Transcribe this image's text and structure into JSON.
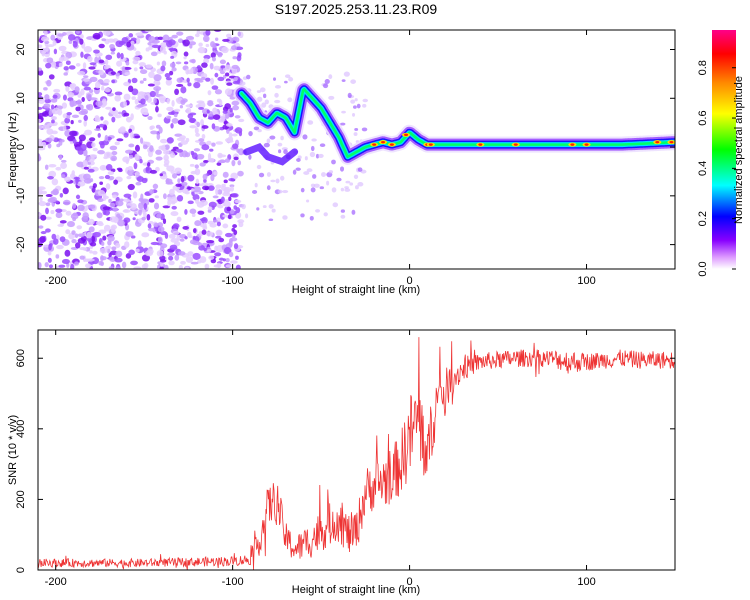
{
  "title": "S197.2025.253.11.23.R09",
  "chart_data": [
    {
      "type": "heatmap",
      "title": "S197.2025.253.11.23.R09",
      "xlabel": "Height of straight line (km)",
      "ylabel": "Frequency (Hz)",
      "xlim": [
        -210,
        150
      ],
      "ylim": [
        -25,
        24
      ],
      "x_ticks": [
        -200,
        -100,
        0,
        100
      ],
      "y_ticks": [
        -20,
        -10,
        0,
        10,
        20
      ],
      "colorbar": {
        "label": "Normalized spectral amplitude",
        "range": [
          0,
          0.95
        ],
        "ticks": [
          0.0,
          0.2,
          0.4,
          0.6,
          0.8
        ],
        "colors": [
          "#ffffff",
          "#cc88ff",
          "#8800ff",
          "#0000ff",
          "#00ffff",
          "#00ff00",
          "#ffff00",
          "#ff6600",
          "#ff0000",
          "#ff00aa"
        ]
      },
      "ridge": {
        "description": "dominant frequency track",
        "x": [
          -95,
          -90,
          -85,
          -80,
          -75,
          -70,
          -65,
          -60,
          -55,
          -50,
          -45,
          -40,
          -35,
          -30,
          -25,
          -20,
          -15,
          -10,
          -5,
          0,
          5,
          10,
          20,
          40,
          60,
          80,
          100,
          120,
          150
        ],
        "y": [
          11,
          9,
          6,
          5,
          7,
          6,
          3,
          12,
          10,
          8,
          5,
          2,
          -2,
          -1,
          0,
          0.5,
          1,
          0.5,
          1,
          3,
          1.5,
          0.5,
          0.5,
          0.5,
          0.5,
          0.5,
          0.5,
          0.5,
          1
        ]
      },
      "noise_region_x": [
        -210,
        -95
      ]
    },
    {
      "type": "line",
      "xlabel": "Height of straight line (km)",
      "ylabel": "SNR (10 * v/v)",
      "xlim": [
        -210,
        150
      ],
      "ylim": [
        0,
        680
      ],
      "x_ticks": [
        -200,
        -100,
        0,
        100
      ],
      "y_ticks": [
        0,
        200,
        400,
        600
      ],
      "series": [
        {
          "name": "SNR",
          "color": "#ee3333",
          "envelope_x": [
            -210,
            -150,
            -100,
            -90,
            -85,
            -80,
            -75,
            -70,
            -65,
            -60,
            -55,
            -50,
            -45,
            -40,
            -35,
            -30,
            -25,
            -20,
            -15,
            -10,
            -5,
            0,
            5,
            10,
            15,
            20,
            25,
            30,
            40,
            50,
            60,
            70,
            80,
            90,
            100,
            110,
            120,
            130,
            140,
            150
          ],
          "envelope_y": [
            20,
            20,
            25,
            30,
            80,
            180,
            200,
            90,
            60,
            70,
            90,
            110,
            130,
            150,
            100,
            110,
            220,
            240,
            250,
            270,
            300,
            380,
            430,
            320,
            470,
            510,
            545,
            570,
            590,
            595,
            600,
            600,
            600,
            590,
            590,
            595,
            600,
            595,
            595,
            595
          ],
          "spread_y": [
            12,
            12,
            14,
            16,
            40,
            60,
            60,
            45,
            40,
            45,
            55,
            60,
            60,
            70,
            60,
            60,
            70,
            70,
            80,
            80,
            90,
            120,
            120,
            100,
            80,
            60,
            45,
            35,
            25,
            25,
            25,
            25,
            25,
            35,
            25,
            25,
            25,
            25,
            25,
            25
          ]
        }
      ]
    }
  ]
}
